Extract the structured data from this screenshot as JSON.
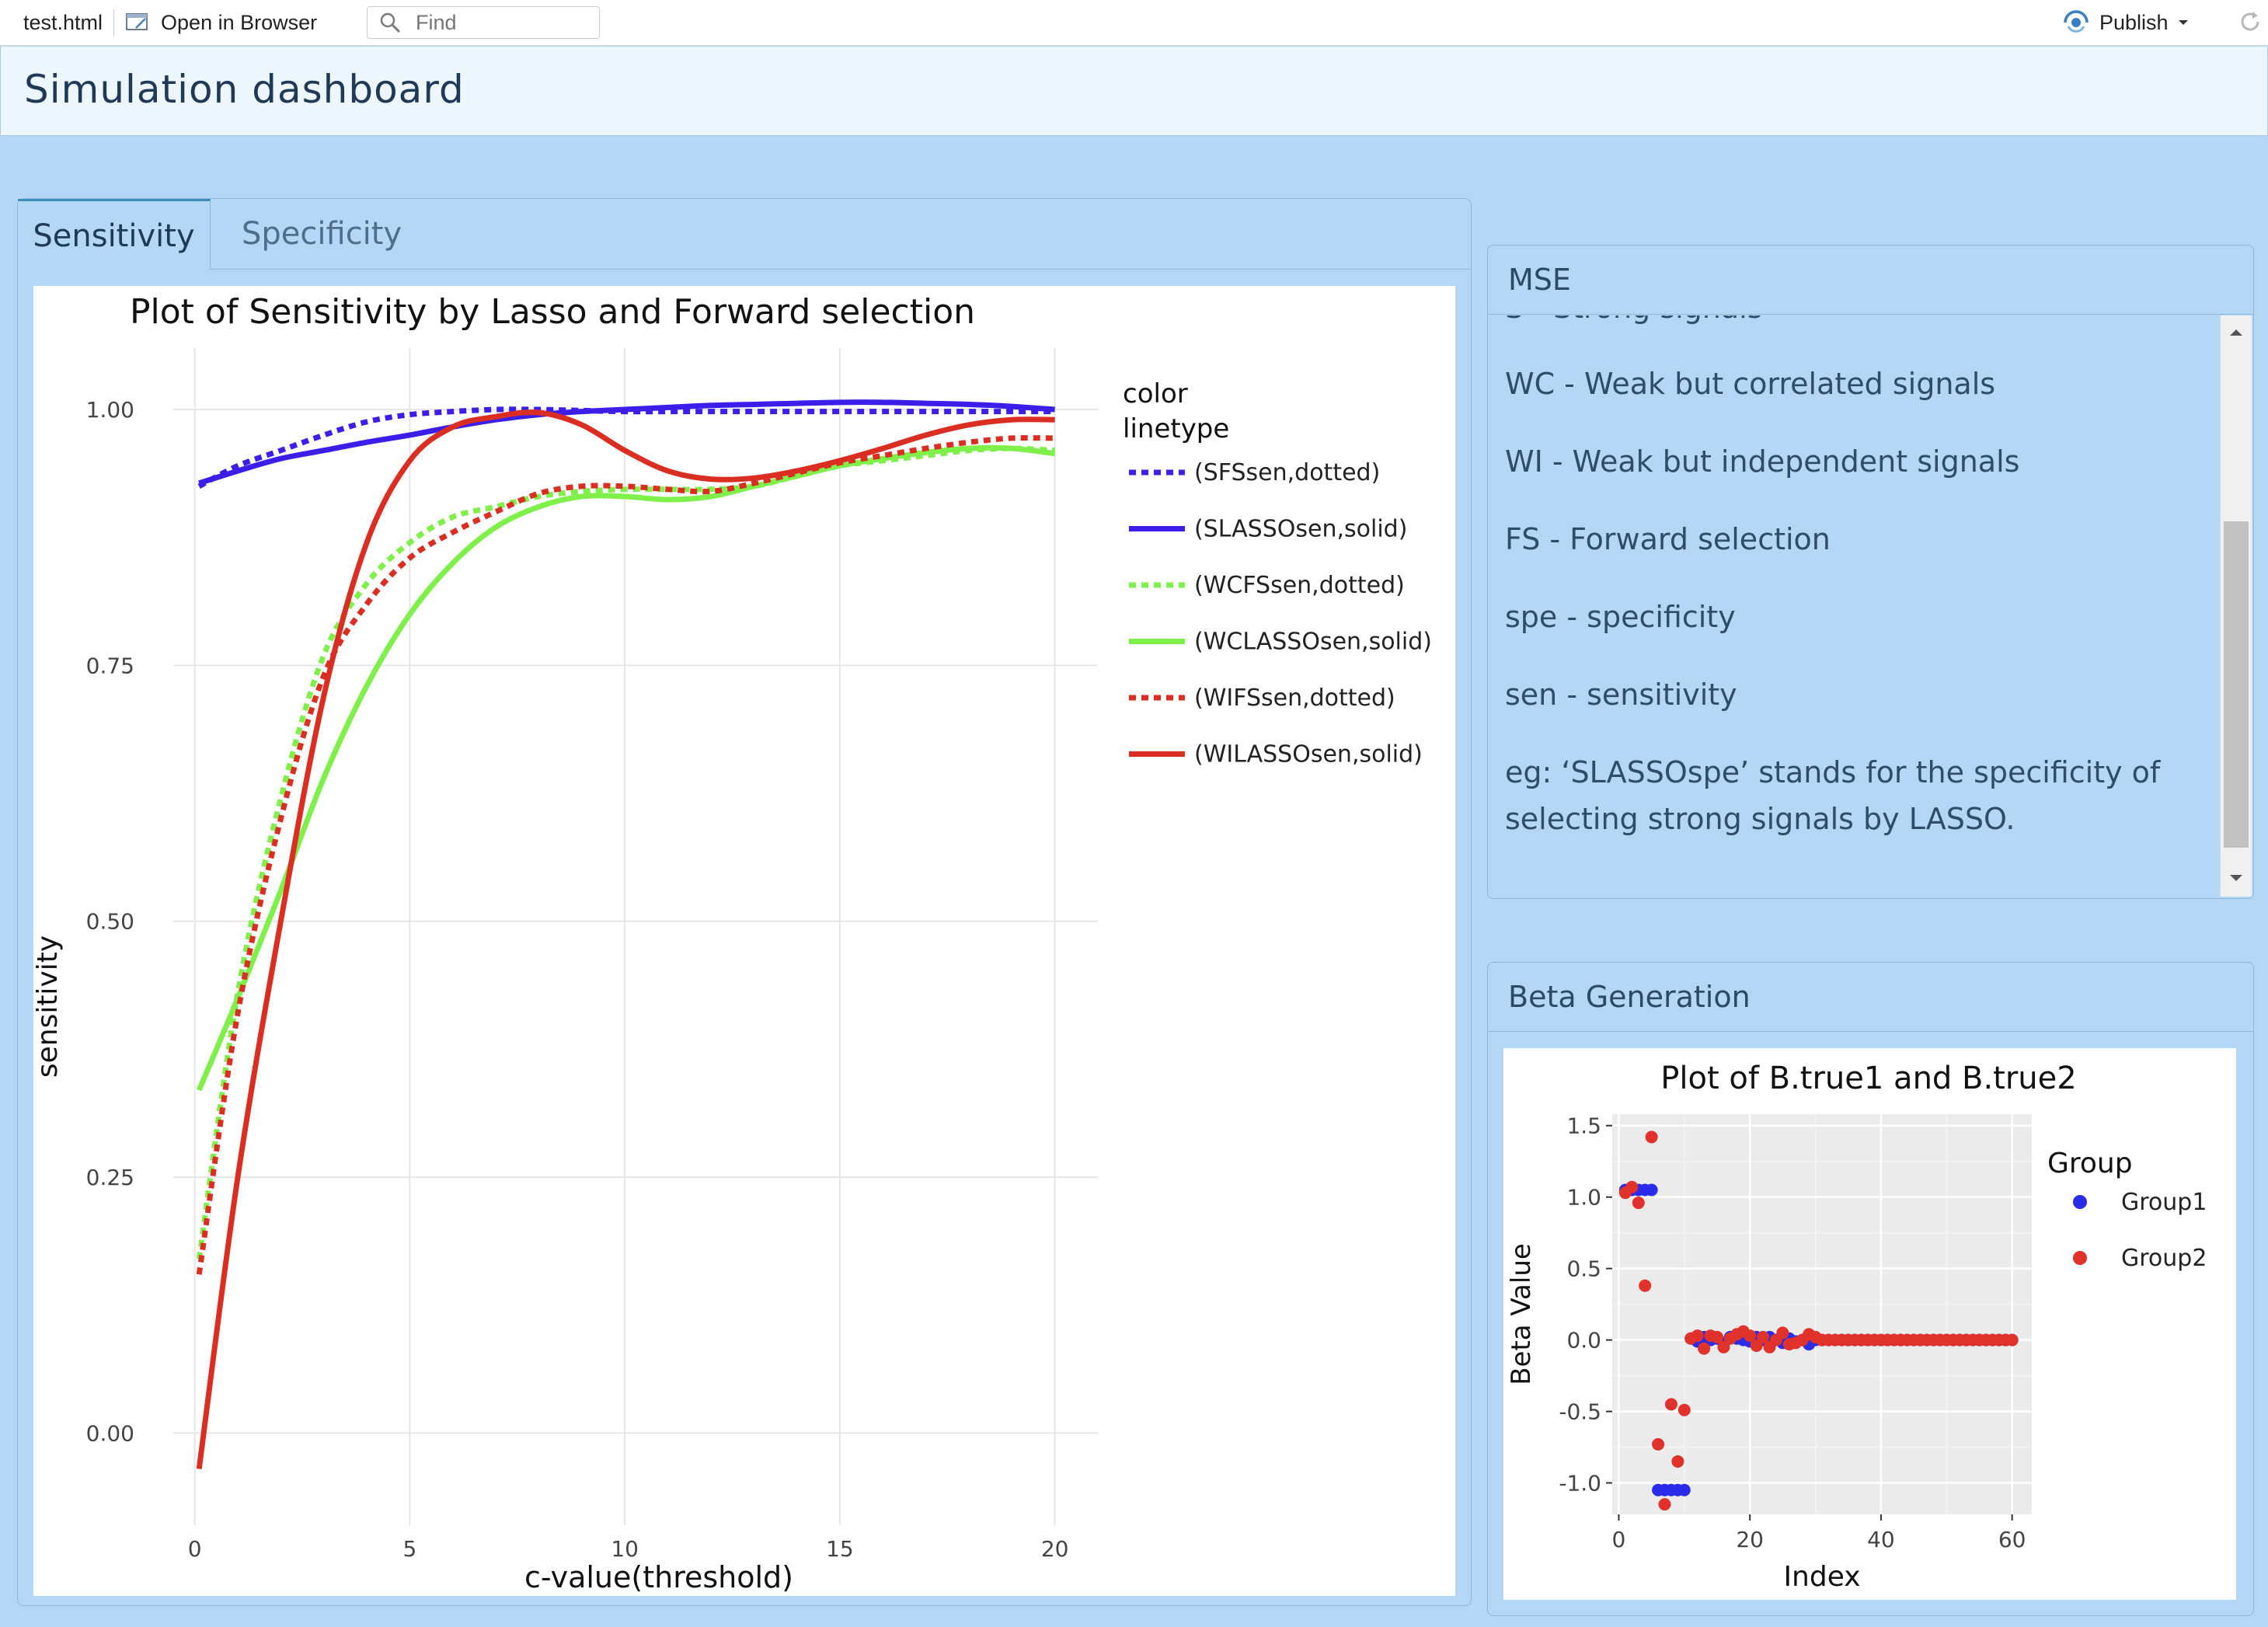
{
  "toolbar": {
    "file_name": "test.html",
    "open_in_browser": "Open in Browser",
    "find_placeholder": "Find",
    "publish_label": "Publish"
  },
  "app": {
    "title": "Simulation dashboard"
  },
  "tabs": [
    {
      "label": "Sensitivity"
    },
    {
      "label": "Specificity"
    }
  ],
  "mse_box": {
    "title": "MSE",
    "lines": [
      "S - Strong signals",
      "WC - Weak but correlated signals",
      "WI - Weak but independent signals",
      "FS - Forward selection",
      "spe - specificity",
      "sen - sensitivity",
      "eg: ‘SLASSOspe’ stands for the specificity of",
      "selecting strong signals by LASSO."
    ]
  },
  "beta_box": {
    "title": "Beta Generation"
  },
  "colors": {
    "blue": "#3b1ee8",
    "green": "#7fef4a",
    "red": "#db2e22",
    "beta_blue": "#2b2bea",
    "beta_red": "#e0322a"
  },
  "chart_data": [
    {
      "type": "line",
      "title": "Plot of Sensitivity by Lasso and Forward selection",
      "xlabel": "c-value(threshold)",
      "ylabel": "sensitivity",
      "xlim": [
        -0.5,
        21
      ],
      "ylim": [
        -0.09,
        1.06
      ],
      "xticks": [
        0,
        5,
        10,
        15,
        20
      ],
      "yticks": [
        0.0,
        0.25,
        0.5,
        0.75,
        1.0
      ],
      "ytick_labels": [
        "0.00",
        "0.25",
        "0.50",
        "0.75",
        "1.00"
      ],
      "grid": true,
      "legend_title": [
        "color",
        "linetype"
      ],
      "legend_position": "right",
      "series": [
        {
          "name": "(SFSsen,dotted)",
          "color": "blue",
          "dash": "dotted",
          "x": [
            0.1,
            1,
            2,
            3,
            4,
            5,
            6,
            7,
            8,
            9,
            10,
            11,
            12,
            13,
            14,
            15,
            16,
            17,
            18,
            19,
            20
          ],
          "y": [
            0.925,
            0.945,
            0.96,
            0.975,
            0.988,
            0.995,
            0.998,
            1.0,
            1.0,
            0.999,
            0.998,
            0.998,
            0.998,
            0.998,
            0.998,
            0.998,
            0.998,
            0.998,
            0.998,
            0.998,
            0.998
          ]
        },
        {
          "name": "(SLASSOsen,solid)",
          "color": "blue",
          "dash": "solid",
          "x": [
            0.1,
            1,
            2,
            3,
            4,
            5,
            6,
            7,
            8,
            9,
            10,
            11,
            12,
            13,
            14,
            15,
            16,
            17,
            18,
            19,
            20
          ],
          "y": [
            0.928,
            0.94,
            0.952,
            0.96,
            0.968,
            0.975,
            0.983,
            0.99,
            0.995,
            0.998,
            1.0,
            1.002,
            1.004,
            1.005,
            1.006,
            1.007,
            1.007,
            1.006,
            1.005,
            1.003,
            1.0
          ]
        },
        {
          "name": "(WCFSsen,dotted)",
          "color": "green",
          "dash": "dotted",
          "x": [
            0.1,
            1,
            2,
            3,
            4,
            5,
            6,
            7,
            8,
            9,
            10,
            11,
            12,
            13,
            14,
            15,
            16,
            17,
            18,
            19,
            20
          ],
          "y": [
            0.17,
            0.43,
            0.62,
            0.76,
            0.83,
            0.87,
            0.895,
            0.905,
            0.915,
            0.92,
            0.922,
            0.922,
            0.922,
            0.925,
            0.935,
            0.945,
            0.95,
            0.955,
            0.96,
            0.962,
            0.96
          ]
        },
        {
          "name": "(WCLASSOsen,solid)",
          "color": "green",
          "dash": "solid",
          "x": [
            0.1,
            1,
            2,
            3,
            4,
            5,
            6,
            7,
            8,
            9,
            10,
            11,
            12,
            13,
            14,
            15,
            16,
            17,
            18,
            19,
            20
          ],
          "y": [
            0.335,
            0.425,
            0.53,
            0.64,
            0.73,
            0.8,
            0.85,
            0.885,
            0.905,
            0.915,
            0.915,
            0.912,
            0.915,
            0.925,
            0.935,
            0.945,
            0.952,
            0.958,
            0.962,
            0.962,
            0.957
          ]
        },
        {
          "name": "(WIFSsen,dotted)",
          "color": "red",
          "dash": "dotted",
          "x": [
            0.1,
            1,
            2,
            3,
            4,
            5,
            6,
            7,
            8,
            9,
            10,
            11,
            12,
            13,
            14,
            15,
            16,
            17,
            18,
            19,
            20
          ],
          "y": [
            0.155,
            0.41,
            0.6,
            0.74,
            0.81,
            0.855,
            0.88,
            0.9,
            0.918,
            0.925,
            0.925,
            0.922,
            0.92,
            0.928,
            0.938,
            0.948,
            0.955,
            0.962,
            0.968,
            0.972,
            0.972
          ]
        },
        {
          "name": "(WILASSOsen,solid)",
          "color": "red",
          "dash": "solid",
          "x": [
            0.1,
            1,
            2,
            3,
            4,
            5,
            6,
            7,
            8,
            9,
            10,
            11,
            12,
            13,
            14,
            15,
            16,
            17,
            18,
            19,
            20
          ],
          "y": [
            -0.035,
            0.25,
            0.5,
            0.72,
            0.87,
            0.95,
            0.983,
            0.993,
            0.997,
            0.985,
            0.96,
            0.94,
            0.932,
            0.933,
            0.94,
            0.95,
            0.962,
            0.975,
            0.985,
            0.99,
            0.99
          ]
        }
      ]
    },
    {
      "type": "scatter",
      "title": "Plot of B.true1 and B.true2",
      "xlabel": "Index",
      "ylabel": "Beta Value",
      "xlim": [
        -1,
        63
      ],
      "ylim": [
        -1.22,
        1.58
      ],
      "xticks": [
        0,
        20,
        40,
        60
      ],
      "yticks": [
        -1.0,
        -0.5,
        0.0,
        0.5,
        1.0,
        1.5
      ],
      "ytick_labels": [
        "-1.0",
        "-0.5",
        "0.0",
        "0.5",
        "1.0",
        "1.5"
      ],
      "grid": true,
      "legend_title": "Group",
      "legend_position": "right",
      "series": [
        {
          "name": "Group1",
          "color": "beta_blue",
          "x": [
            1,
            2,
            3,
            4,
            5,
            6,
            7,
            8,
            9,
            10,
            11,
            12,
            13,
            14,
            15,
            16,
            17,
            18,
            19,
            20,
            21,
            22,
            23,
            24,
            25,
            26,
            27,
            28,
            29,
            30,
            31,
            32,
            33,
            34,
            35,
            36,
            37,
            38,
            39,
            40,
            41,
            42,
            43,
            44,
            45,
            46,
            47,
            48,
            49,
            50,
            51,
            52,
            53,
            54,
            55,
            56,
            57,
            58,
            59,
            60
          ],
          "y": [
            1.05,
            1.05,
            1.05,
            1.05,
            1.05,
            -1.05,
            -1.05,
            -1.05,
            -1.05,
            -1.05,
            0.01,
            -0.01,
            0.02,
            0.0,
            0.01,
            -0.02,
            0.02,
            0.01,
            0.0,
            -0.01,
            0.02,
            0.0,
            0.02,
            0.0,
            -0.02,
            0.01,
            -0.01,
            0.0,
            -0.03,
            0.0,
            0,
            0,
            0,
            0,
            0,
            0,
            0,
            0,
            0,
            0,
            0,
            0,
            0,
            0,
            0,
            0,
            0,
            0,
            0,
            0,
            0,
            0,
            0,
            0,
            0,
            0,
            0,
            0,
            0,
            0
          ]
        },
        {
          "name": "Group2",
          "color": "beta_red",
          "x": [
            1,
            2,
            3,
            4,
            5,
            6,
            7,
            8,
            9,
            10,
            11,
            12,
            13,
            14,
            15,
            16,
            17,
            18,
            19,
            20,
            21,
            22,
            23,
            24,
            25,
            26,
            27,
            28,
            29,
            30,
            31,
            32,
            33,
            34,
            35,
            36,
            37,
            38,
            39,
            40,
            41,
            42,
            43,
            44,
            45,
            46,
            47,
            48,
            49,
            50,
            51,
            52,
            53,
            54,
            55,
            56,
            57,
            58,
            59,
            60
          ],
          "y": [
            1.03,
            1.07,
            0.96,
            0.38,
            1.42,
            -0.73,
            -1.15,
            -0.45,
            -0.85,
            -0.49,
            0.01,
            0.03,
            -0.06,
            0.03,
            0.02,
            -0.05,
            0.01,
            0.04,
            0.06,
            0.03,
            -0.04,
            0.02,
            -0.05,
            0.0,
            0.05,
            -0.03,
            -0.02,
            0.0,
            0.04,
            0.02,
            0,
            0,
            0,
            0,
            0,
            0,
            0,
            0,
            0,
            0,
            0,
            0,
            0,
            0,
            0,
            0,
            0,
            0,
            0,
            0,
            0,
            0,
            0,
            0,
            0,
            0,
            0,
            0,
            0,
            0
          ]
        }
      ]
    }
  ]
}
